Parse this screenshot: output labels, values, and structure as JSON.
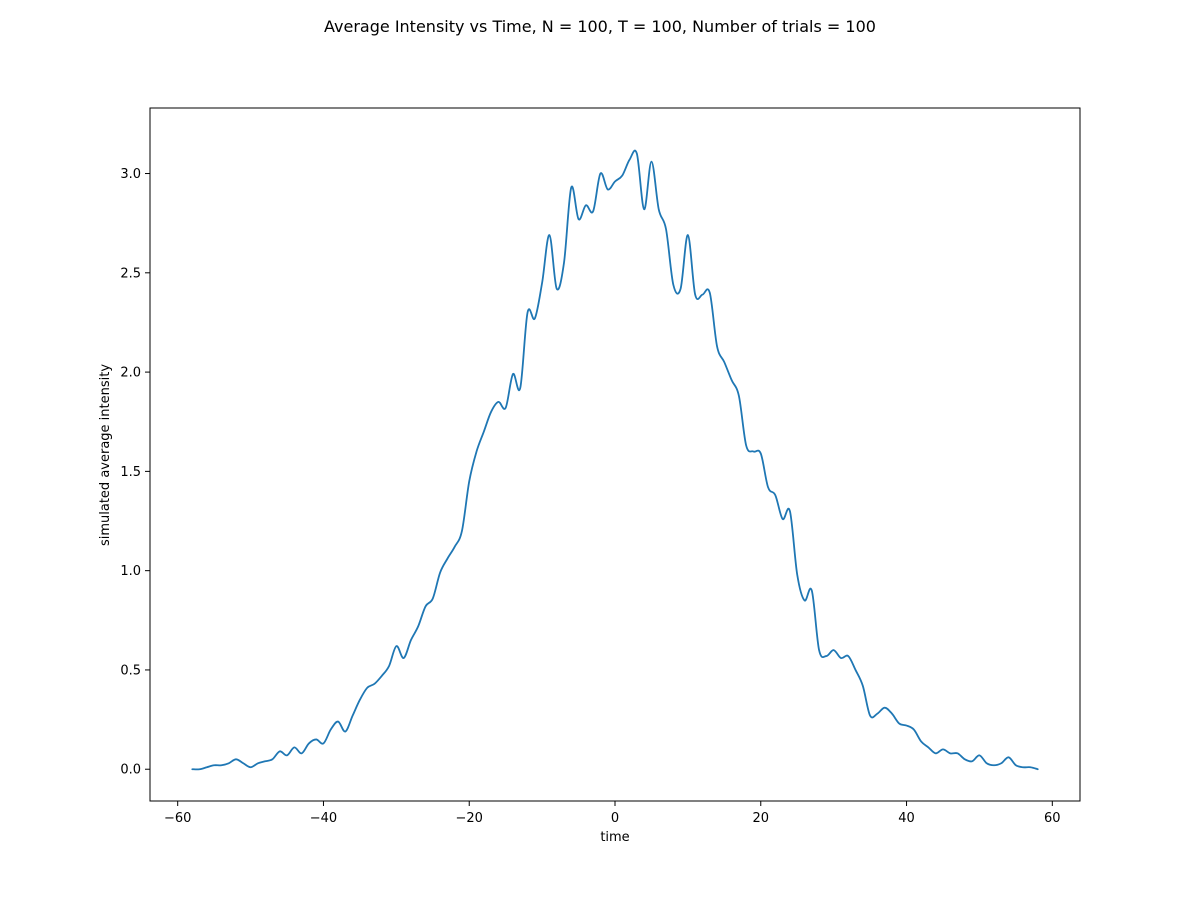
{
  "chart_data": {
    "type": "line",
    "title": "Average Intensity vs Time, N = 100, T = 100, Number of trials = 100",
    "xlabel": "time",
    "ylabel": "simulated average intensity",
    "xlim": [
      -63.8,
      63.8
    ],
    "ylim": [
      -0.16,
      3.33
    ],
    "xticks": [
      -60,
      -40,
      -20,
      0,
      20,
      40,
      60
    ],
    "xtick_labels": [
      "−60",
      "−40",
      "−20",
      "0",
      "20",
      "40",
      "60"
    ],
    "yticks": [
      0.0,
      0.5,
      1.0,
      1.5,
      2.0,
      2.5,
      3.0
    ],
    "ytick_labels": [
      "0.0",
      "0.5",
      "1.0",
      "1.5",
      "2.0",
      "2.5",
      "3.0"
    ],
    "grid": false,
    "legend": null,
    "series": [
      {
        "color": "#1f77b4",
        "x": [
          -58,
          -57,
          -56,
          -55,
          -54,
          -53,
          -52,
          -51,
          -50,
          -49,
          -48,
          -47,
          -46,
          -45,
          -44,
          -43,
          -42,
          -41,
          -40,
          -39,
          -38,
          -37,
          -36,
          -35,
          -34,
          -33,
          -32,
          -31,
          -30,
          -29,
          -28,
          -27,
          -26,
          -25,
          -24,
          -23,
          -22,
          -21,
          -20,
          -19,
          -18,
          -17,
          -16,
          -15,
          -14,
          -13,
          -12,
          -11,
          -10,
          -9,
          -8,
          -7,
          -6,
          -5,
          -4,
          -3,
          -2,
          -1,
          0,
          1,
          2,
          3,
          4,
          5,
          6,
          7,
          8,
          9,
          10,
          11,
          12,
          13,
          14,
          15,
          16,
          17,
          18,
          19,
          20,
          21,
          22,
          23,
          24,
          25,
          26,
          27,
          28,
          29,
          30,
          31,
          32,
          33,
          34,
          35,
          36,
          37,
          38,
          39,
          40,
          41,
          42,
          43,
          44,
          45,
          46,
          47,
          48,
          49,
          50,
          51,
          52,
          53,
          54,
          55,
          56,
          57,
          58
        ],
        "y": [
          0.0,
          0.0,
          0.01,
          0.02,
          0.02,
          0.03,
          0.05,
          0.03,
          0.01,
          0.03,
          0.04,
          0.05,
          0.09,
          0.07,
          0.11,
          0.08,
          0.13,
          0.15,
          0.13,
          0.2,
          0.24,
          0.19,
          0.27,
          0.35,
          0.41,
          0.43,
          0.47,
          0.52,
          0.62,
          0.56,
          0.65,
          0.72,
          0.82,
          0.86,
          0.99,
          1.06,
          1.12,
          1.2,
          1.45,
          1.6,
          1.7,
          1.8,
          1.85,
          1.82,
          1.99,
          1.92,
          2.3,
          2.27,
          2.45,
          2.69,
          2.42,
          2.55,
          2.93,
          2.77,
          2.84,
          2.81,
          3.0,
          2.92,
          2.96,
          2.99,
          3.07,
          3.1,
          2.82,
          3.06,
          2.82,
          2.72,
          2.44,
          2.42,
          2.69,
          2.39,
          2.39,
          2.4,
          2.13,
          2.05,
          1.96,
          1.88,
          1.63,
          1.6,
          1.59,
          1.42,
          1.38,
          1.26,
          1.3,
          0.98,
          0.85,
          0.9,
          0.6,
          0.57,
          0.6,
          0.56,
          0.57,
          0.5,
          0.42,
          0.27,
          0.28,
          0.31,
          0.28,
          0.23,
          0.22,
          0.2,
          0.14,
          0.11,
          0.08,
          0.1,
          0.08,
          0.08,
          0.05,
          0.04,
          0.07,
          0.03,
          0.02,
          0.03,
          0.06,
          0.02,
          0.01,
          0.01,
          0.0
        ]
      }
    ]
  }
}
